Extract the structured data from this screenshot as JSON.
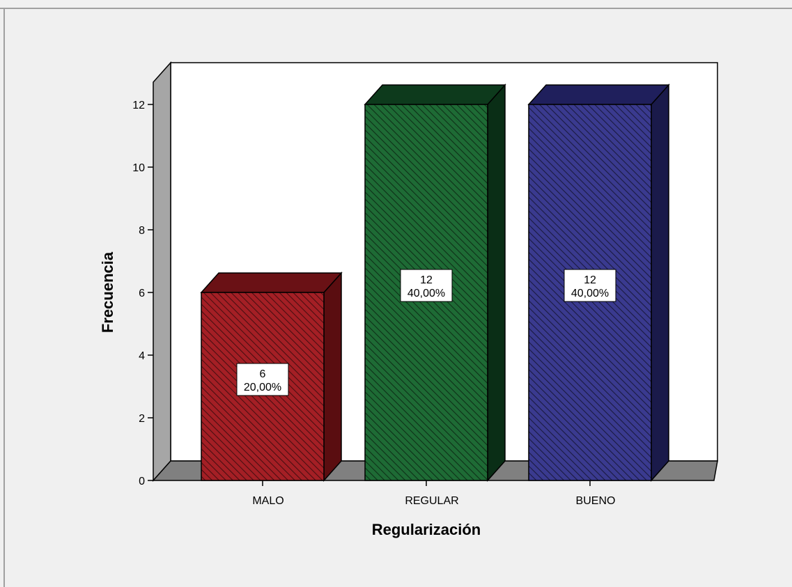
{
  "chart_data": {
    "type": "bar",
    "categories": [
      "MALO",
      "REGULAR",
      "BUENO"
    ],
    "values": [
      6,
      12,
      12
    ],
    "percent_labels": [
      "20,00%",
      "40,00%",
      "40,00%"
    ],
    "count_labels": [
      "6",
      "12",
      "12"
    ],
    "xlabel": "Regularización",
    "ylabel": "Frecuencia",
    "ylim": [
      0,
      12
    ],
    "yticks": [
      0,
      2,
      4,
      6,
      8,
      10,
      12
    ],
    "ytick_labels": [
      "0",
      "2",
      "4",
      "6",
      "8",
      "10",
      "12"
    ],
    "grid": false,
    "legend": "none",
    "three_d": true
  },
  "colors": {
    "background": "#f0f0f0",
    "plot_back_wall": "#ffffff",
    "side_wall": "#a6a6a6",
    "floor": "#808080",
    "bars": [
      "#a41f25",
      "#1e6b35",
      "#3a3a8f"
    ],
    "bars_top": [
      "#6a1115",
      "#0d3a1c",
      "#1f1f5c"
    ],
    "bars_side": [
      "#5a0d10",
      "#0a2e16",
      "#1a1a4a"
    ]
  }
}
